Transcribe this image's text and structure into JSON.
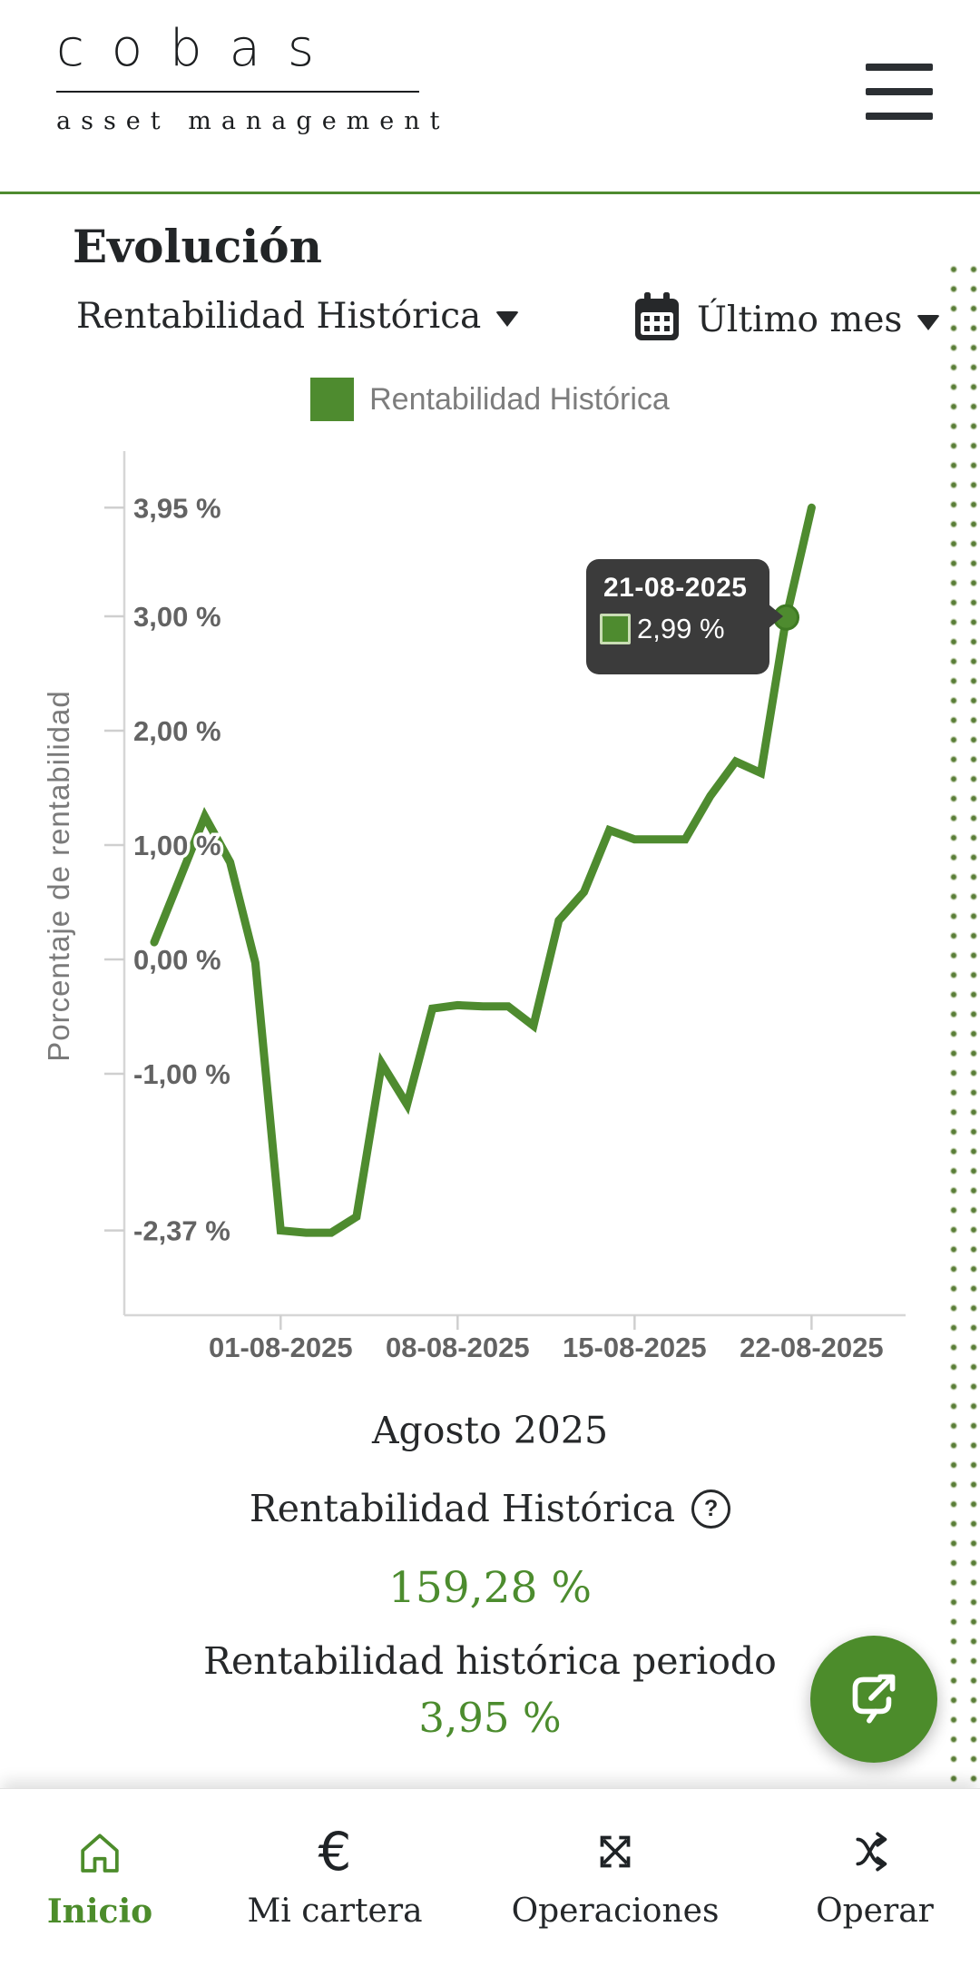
{
  "header": {
    "logo_main": "cobas",
    "logo_sub": "asset management"
  },
  "page": {
    "title": "Evolución"
  },
  "controls": {
    "metric_label": "Rentabilidad Histórica",
    "period_label": "Último mes"
  },
  "legend": {
    "label": "Rentabilidad Histórica",
    "color": "#4e8b2f"
  },
  "chart_data": {
    "type": "line",
    "series_name": "Rentabilidad Histórica",
    "ylabel": "Porcentaje de rentabilidad",
    "line_color": "#4e8b2f",
    "grid": false,
    "legend_position": "top",
    "ylim": [
      -2.8,
      4.45
    ],
    "x": [
      "27-07-2025",
      "28-07-2025",
      "29-07-2025",
      "30-07-2025",
      "31-07-2025",
      "01-08-2025",
      "02-08-2025",
      "03-08-2025",
      "04-08-2025",
      "05-08-2025",
      "06-08-2025",
      "07-08-2025",
      "08-08-2025",
      "09-08-2025",
      "10-08-2025",
      "11-08-2025",
      "12-08-2025",
      "13-08-2025",
      "14-08-2025",
      "15-08-2025",
      "16-08-2025",
      "17-08-2025",
      "18-08-2025",
      "19-08-2025",
      "20-08-2025",
      "21-08-2025",
      "22-08-2025"
    ],
    "values": [
      0.15,
      0.7,
      1.25,
      0.85,
      -0.03,
      -2.37,
      -2.39,
      -2.39,
      -2.25,
      -0.91,
      -1.27,
      -0.43,
      -0.4,
      -0.41,
      -0.41,
      -0.58,
      0.34,
      0.59,
      1.13,
      1.05,
      1.05,
      1.05,
      1.43,
      1.73,
      1.63,
      2.99,
      3.95
    ],
    "y_ticks": [
      {
        "v": 3.95,
        "label": "3,95 %"
      },
      {
        "v": 3.0,
        "label": "3,00 %"
      },
      {
        "v": 2.0,
        "label": "2,00 %"
      },
      {
        "v": 1.0,
        "label": "1,00 %"
      },
      {
        "v": 0.0,
        "label": "0,00 %"
      },
      {
        "v": -1.0,
        "label": "-1,00 %"
      },
      {
        "v": -2.37,
        "label": "-2,37 %"
      }
    ],
    "x_ticks": [
      {
        "i": 5,
        "label": "01-08-2025"
      },
      {
        "i": 12,
        "label": "08-08-2025"
      },
      {
        "i": 19,
        "label": "15-08-2025"
      },
      {
        "i": 26,
        "label": "22-08-2025"
      }
    ],
    "tooltip": {
      "date": "21-08-2025",
      "value_label": "2,99 %",
      "point_index": 25
    }
  },
  "summary": {
    "month_title": "Agosto 2025",
    "metric_label": "Rentabilidad Histórica",
    "help_glyph": "?",
    "metric_value": "159,28 %",
    "period_metric_label": "Rentabilidad histórica periodo",
    "period_metric_value": "3,95 %"
  },
  "nav": {
    "items": [
      {
        "label": "Inicio",
        "icon": "home",
        "active": true
      },
      {
        "label": "Mi cartera",
        "icon": "euro",
        "active": false,
        "glyph": "€"
      },
      {
        "label": "Operaciones",
        "icon": "expand-arrows",
        "active": false
      },
      {
        "label": "Operar",
        "icon": "shuffle",
        "active": false
      }
    ]
  },
  "colors": {
    "accent_green": "#4e8b2f",
    "tooltip_bg": "#3b3b3b",
    "tick_text": "#636363"
  }
}
